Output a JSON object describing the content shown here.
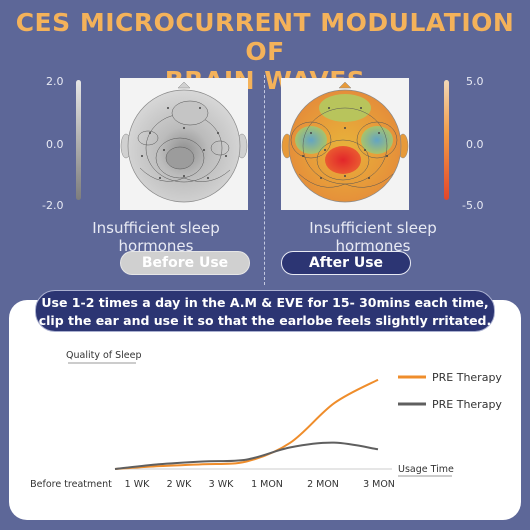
{
  "title_line1": "CES MICROCURRENT MODULATION OF",
  "title_line2": "BRAIN WAVES",
  "left_scale": {
    "top": "2.0",
    "mid": "0.0",
    "bottom": "-2.0"
  },
  "right_scale": {
    "top": "5.0",
    "mid": "0.0",
    "bottom": "-5.0"
  },
  "before": {
    "caption": "Insufficient sleep hormones",
    "label": "Before Use"
  },
  "after": {
    "caption": "Insufficient sleep hormones",
    "label": "After Use"
  },
  "instructions": {
    "line1": "Use 1-2 times a day in the A.M & EVE for 15- 30mins each time,",
    "line2": "clip the ear and use it so that the earlobe feels slightly rritated."
  },
  "colors": {
    "orange": "#ef8d2b",
    "gray": "#5f5f5f",
    "navy": "#2c3573",
    "title": "#f4b25a"
  },
  "chart_data": {
    "type": "line",
    "ylabel": "Quality of Sleep",
    "xlabel": "Usage Time",
    "categories": [
      "Before treatment",
      "1 WK",
      "2 WK",
      "3 WK",
      "1 MON",
      "2 MON",
      "3 MON"
    ],
    "ylim": [
      0,
      100
    ],
    "grid": false,
    "legend_position": "right",
    "series": [
      {
        "name": "PRE Therapy",
        "color": "#ef8d2b",
        "values": [
          0,
          3,
          5,
          8,
          28,
          70,
          95
        ]
      },
      {
        "name": "PRE Therapy",
        "color": "#5f5f5f",
        "values": [
          0,
          5,
          8,
          10,
          23,
          28,
          21
        ]
      }
    ]
  }
}
